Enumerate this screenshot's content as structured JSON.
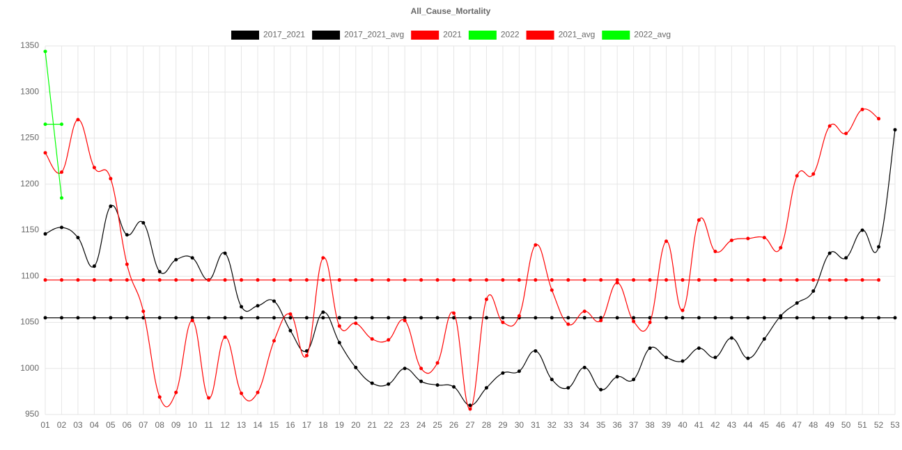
{
  "chart_data": {
    "type": "line",
    "title": "All_Cause_Mortality",
    "categories": [
      "01",
      "02",
      "03",
      "04",
      "05",
      "06",
      "07",
      "08",
      "09",
      "10",
      "11",
      "12",
      "13",
      "14",
      "15",
      "16",
      "17",
      "18",
      "19",
      "20",
      "21",
      "22",
      "23",
      "24",
      "25",
      "26",
      "27",
      "28",
      "29",
      "30",
      "31",
      "32",
      "33",
      "34",
      "35",
      "36",
      "37",
      "38",
      "39",
      "40",
      "41",
      "42",
      "43",
      "44",
      "45",
      "46",
      "47",
      "48",
      "49",
      "50",
      "51",
      "52",
      "53"
    ],
    "ylim": [
      950,
      1350
    ],
    "yticks": [
      950,
      1000,
      1050,
      1100,
      1150,
      1200,
      1250,
      1300,
      1350
    ],
    "grid": true,
    "legend": "top",
    "series": [
      {
        "name": "2017_2021",
        "color": "#000000",
        "values": [
          1146,
          1153,
          1142,
          1111,
          1176,
          1145,
          1158,
          1105,
          1118,
          1120,
          1096,
          1125,
          1067,
          1068,
          1073,
          1041,
          1019,
          1061,
          1028,
          1001,
          984,
          983,
          1000,
          986,
          982,
          980,
          960,
          979,
          995,
          997,
          1019,
          988,
          979,
          1001,
          977,
          991,
          988,
          1022,
          1012,
          1008,
          1022,
          1012,
          1033,
          1011,
          1032,
          1057,
          1071,
          1084,
          1125,
          1120,
          1150,
          1132,
          1259
        ]
      },
      {
        "name": "2017_2021_avg",
        "color": "#000000",
        "values": [
          1055,
          1055,
          1055,
          1055,
          1055,
          1055,
          1055,
          1055,
          1055,
          1055,
          1055,
          1055,
          1055,
          1055,
          1055,
          1055,
          1055,
          1055,
          1055,
          1055,
          1055,
          1055,
          1055,
          1055,
          1055,
          1055,
          1055,
          1055,
          1055,
          1055,
          1055,
          1055,
          1055,
          1055,
          1055,
          1055,
          1055,
          1055,
          1055,
          1055,
          1055,
          1055,
          1055,
          1055,
          1055,
          1055,
          1055,
          1055,
          1055,
          1055,
          1055,
          1055,
          1055
        ]
      },
      {
        "name": "2021",
        "color": "#ff0000",
        "values": [
          1234,
          1213,
          1270,
          1218,
          1206,
          1113,
          1062,
          969,
          974,
          1052,
          968,
          1034,
          973,
          974,
          1030,
          1059,
          1014,
          1120,
          1046,
          1049,
          1032,
          1031,
          1052,
          1000,
          1006,
          1060,
          956,
          1075,
          1050,
          1057,
          1134,
          1085,
          1048,
          1062,
          1052,
          1093,
          1051,
          1050,
          1138,
          1063,
          1161,
          1127,
          1139,
          1141,
          1142,
          1131,
          1209,
          1211,
          1263,
          1255,
          1281,
          1271,
          null
        ]
      },
      {
        "name": "2022",
        "color": "#00ff00",
        "values": [
          1344,
          1185,
          null,
          null,
          null,
          null,
          null,
          null,
          null,
          null,
          null,
          null,
          null,
          null,
          null,
          null,
          null,
          null,
          null,
          null,
          null,
          null,
          null,
          null,
          null,
          null,
          null,
          null,
          null,
          null,
          null,
          null,
          null,
          null,
          null,
          null,
          null,
          null,
          null,
          null,
          null,
          null,
          null,
          null,
          null,
          null,
          null,
          null,
          null,
          null,
          null,
          null,
          null
        ]
      },
      {
        "name": "2021_avg",
        "color": "#ff0000",
        "values": [
          1096,
          1096,
          1096,
          1096,
          1096,
          1096,
          1096,
          1096,
          1096,
          1096,
          1096,
          1096,
          1096,
          1096,
          1096,
          1096,
          1096,
          1096,
          1096,
          1096,
          1096,
          1096,
          1096,
          1096,
          1096,
          1096,
          1096,
          1096,
          1096,
          1096,
          1096,
          1096,
          1096,
          1096,
          1096,
          1096,
          1096,
          1096,
          1096,
          1096,
          1096,
          1096,
          1096,
          1096,
          1096,
          1096,
          1096,
          1096,
          1096,
          1096,
          1096,
          1096,
          null
        ]
      },
      {
        "name": "2022_avg",
        "color": "#00ff00",
        "values": [
          1265,
          1265,
          null,
          null,
          null,
          null,
          null,
          null,
          null,
          null,
          null,
          null,
          null,
          null,
          null,
          null,
          null,
          null,
          null,
          null,
          null,
          null,
          null,
          null,
          null,
          null,
          null,
          null,
          null,
          null,
          null,
          null,
          null,
          null,
          null,
          null,
          null,
          null,
          null,
          null,
          null,
          null,
          null,
          null,
          null,
          null,
          null,
          null,
          null,
          null,
          null,
          null,
          null
        ]
      }
    ]
  }
}
